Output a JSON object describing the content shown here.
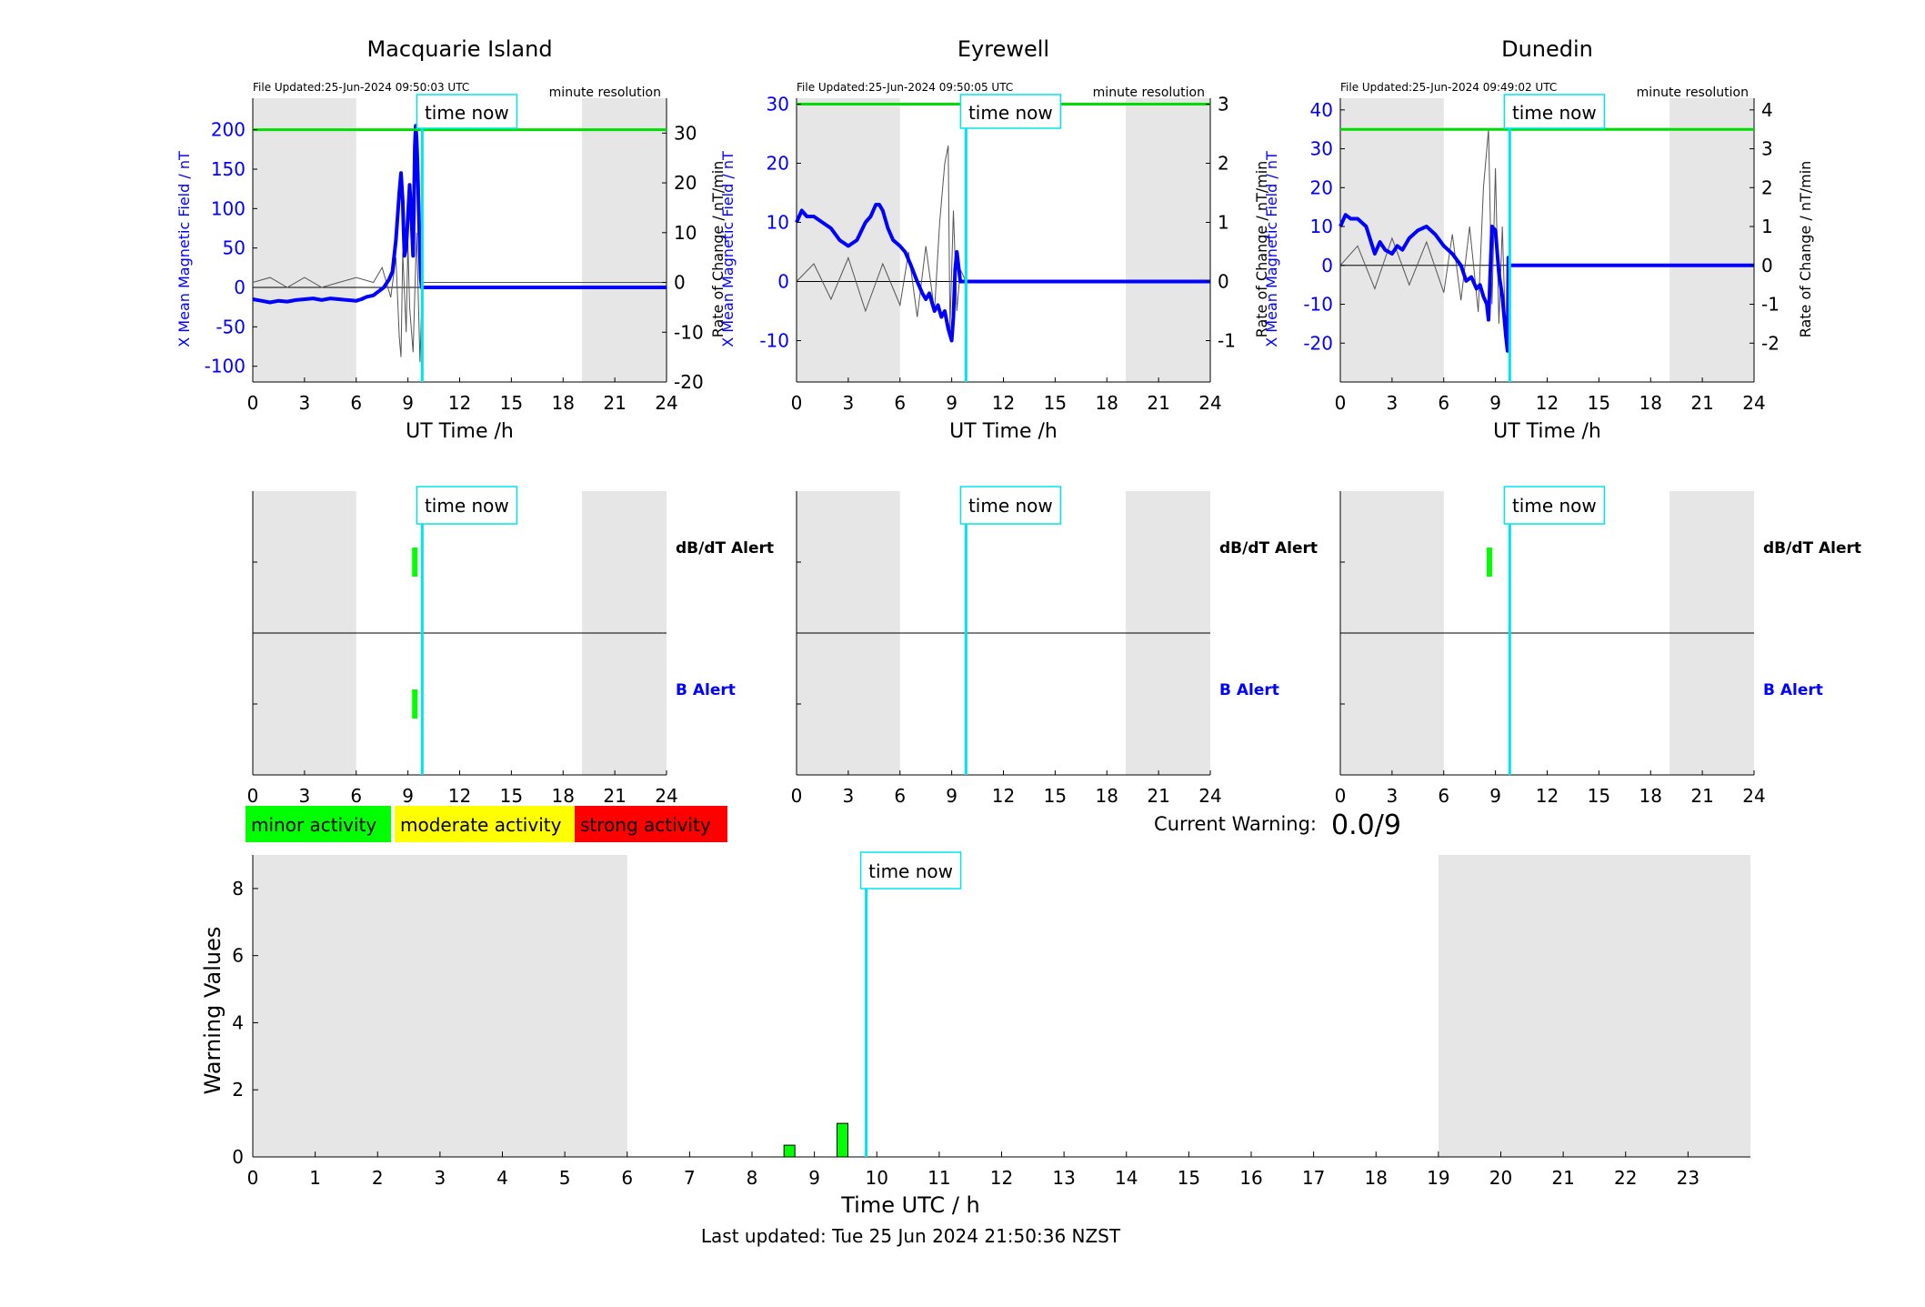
{
  "colors": {
    "axis": "#000000",
    "mean_field": "#0000ff",
    "rate_of_change": "#555555",
    "threshold": "#00dd00",
    "time_now": "#00e5ee",
    "night_shade": "#e6e6e6",
    "minor": "#00ff00",
    "moderate": "#ffff00",
    "strong": "#ff0000"
  },
  "time_now_label": "time now",
  "stations": [
    {
      "name": "Macquarie Island",
      "file_updated": "File Updated:25-Jun-2024 09:50:03 UTC",
      "resolution": "minute resolution",
      "ylabel_left": "X Mean Magnetic Field / nT",
      "ylabel_right": "Rate of Change / nT/min",
      "xlabel": "UT Time /h",
      "left_ticks": [
        "200",
        "150",
        "100",
        "50",
        "0",
        "-50",
        "-100"
      ],
      "right_ticks": [
        "30",
        "20",
        "10",
        "0",
        "-10",
        "-20"
      ],
      "x_ticks": [
        "0",
        "3",
        "6",
        "9",
        "12",
        "15",
        "18",
        "21",
        "24"
      ],
      "alert_labels": {
        "dbdt": "dB/dT Alert",
        "b": "B Alert"
      },
      "alerts": {
        "dbdt": [
          9.4
        ],
        "b": [
          9.4
        ]
      },
      "chart_data": {
        "type": "line",
        "xlim": [
          0,
          24
        ],
        "ylim_left": [
          -120,
          240
        ],
        "ylim_right": [
          -20,
          37
        ],
        "night_hours": [
          [
            0,
            6
          ],
          [
            19.1,
            24
          ]
        ],
        "threshold_left": 200,
        "time_now": 9.83,
        "mean_field": {
          "x": [
            0,
            0.5,
            1,
            1.5,
            2,
            2.5,
            3,
            3.5,
            4,
            4.5,
            5,
            5.5,
            6,
            6.3,
            6.6,
            7,
            7.3,
            7.6,
            7.9,
            8.1,
            8.3,
            8.5,
            8.6,
            8.7,
            8.75,
            8.8,
            8.9,
            9.0,
            9.1,
            9.2,
            9.3,
            9.35,
            9.4,
            9.45,
            9.5,
            9.55,
            9.6,
            9.65,
            9.7,
            9.75,
            9.8,
            9.83,
            12,
            24
          ],
          "y": [
            -15,
            -17,
            -19,
            -17,
            -18,
            -16,
            -15,
            -14,
            -16,
            -14,
            -15,
            -16,
            -17,
            -15,
            -12,
            -10,
            -5,
            0,
            10,
            20,
            60,
            120,
            145,
            110,
            70,
            40,
            50,
            90,
            130,
            90,
            40,
            110,
            180,
            205,
            190,
            160,
            120,
            80,
            40,
            10,
            0,
            0,
            0,
            0
          ]
        },
        "rate_of_change": {
          "x": [
            0,
            1,
            2,
            3,
            4,
            5,
            6,
            7,
            7.5,
            8,
            8.3,
            8.5,
            8.6,
            8.7,
            8.9,
            9.0,
            9.1,
            9.3,
            9.5,
            9.7,
            9.83,
            24
          ],
          "y": [
            0,
            1,
            -1,
            1,
            -1,
            0,
            1,
            0,
            3,
            -3,
            5,
            -11,
            -15,
            6,
            -10,
            8,
            -5,
            -14,
            10,
            -16,
            0,
            0
          ]
        }
      }
    },
    {
      "name": "Eyrewell",
      "file_updated": "File Updated:25-Jun-2024 09:50:05 UTC",
      "resolution": "minute resolution",
      "ylabel_left": "X Mean Magnetic Field / nT",
      "ylabel_right": "Rate of Change / nT/min",
      "xlabel": "UT Time /h",
      "left_ticks": [
        "30",
        "20",
        "10",
        "0",
        "-10"
      ],
      "right_ticks": [
        "3",
        "2",
        "1",
        "0",
        "-1"
      ],
      "x_ticks": [
        "0",
        "3",
        "6",
        "9",
        "12",
        "15",
        "18",
        "21",
        "24"
      ],
      "alert_labels": {
        "dbdt": "dB/dT Alert",
        "b": "B Alert"
      },
      "alerts": {
        "dbdt": [],
        "b": []
      },
      "chart_data": {
        "type": "line",
        "xlim": [
          0,
          24
        ],
        "ylim_left": [
          -17,
          31
        ],
        "ylim_right": [
          -1.7,
          3.1
        ],
        "night_hours": [
          [
            0,
            6
          ],
          [
            19.1,
            24
          ]
        ],
        "threshold_left": 30,
        "time_now": 9.83,
        "mean_field": {
          "x": [
            0,
            0.3,
            0.6,
            1,
            1.5,
            2,
            2.5,
            3,
            3.5,
            4,
            4.3,
            4.6,
            4.8,
            5,
            5.3,
            5.6,
            6,
            6.3,
            6.6,
            7,
            7.3,
            7.5,
            7.7,
            7.9,
            8.0,
            8.2,
            8.4,
            8.6,
            8.8,
            8.9,
            9.0,
            9.1,
            9.2,
            9.3,
            9.5,
            9.83,
            12,
            24
          ],
          "y": [
            10,
            12,
            11,
            11,
            10,
            9,
            7,
            6,
            7,
            10,
            11,
            13,
            13,
            12,
            9,
            7,
            6,
            5,
            3,
            0,
            -2,
            -3,
            -2,
            -4,
            -5,
            -4,
            -6,
            -5,
            -8,
            -9,
            -10,
            -6,
            2,
            5,
            0,
            0,
            0,
            0
          ]
        },
        "rate_of_change": {
          "x": [
            0,
            1,
            2,
            3,
            4,
            5,
            6,
            6.5,
            7,
            7.5,
            8,
            8.3,
            8.6,
            8.8,
            8.9,
            9.1,
            9.3,
            9.5,
            9.83,
            24
          ],
          "y": [
            0,
            0.3,
            -0.3,
            0.4,
            -0.5,
            0.3,
            -0.4,
            0.5,
            -0.6,
            0.6,
            -0.5,
            1.0,
            2.0,
            2.3,
            -0.8,
            1.2,
            -0.5,
            0.2,
            0,
            0
          ]
        }
      }
    },
    {
      "name": "Dunedin",
      "file_updated": "File Updated:25-Jun-2024 09:49:02 UTC",
      "resolution": "minute resolution",
      "ylabel_left": "X Mean Magnetic Field / nT",
      "ylabel_right": "Rate of Change / nT/min",
      "xlabel": "UT Time /h",
      "left_ticks": [
        "40",
        "30",
        "20",
        "10",
        "0",
        "-10",
        "-20"
      ],
      "right_ticks": [
        "4",
        "3",
        "2",
        "1",
        "0",
        "-1",
        "-2"
      ],
      "x_ticks": [
        "0",
        "3",
        "6",
        "9",
        "12",
        "15",
        "18",
        "21",
        "24"
      ],
      "alert_labels": {
        "dbdt": "dB/dT Alert",
        "b": "B Alert"
      },
      "alerts": {
        "dbdt": [
          8.65
        ],
        "b": []
      },
      "chart_data": {
        "type": "line",
        "xlim": [
          0,
          24
        ],
        "ylim_left": [
          -30,
          43
        ],
        "ylim_right": [
          -3,
          4.3
        ],
        "night_hours": [
          [
            0,
            6
          ],
          [
            19.1,
            24
          ]
        ],
        "threshold_left": 35,
        "time_now": 9.83,
        "mean_field": {
          "x": [
            0,
            0.3,
            0.6,
            1,
            1.5,
            2,
            2.3,
            2.6,
            3,
            3.3,
            3.6,
            4,
            4.5,
            5,
            5.5,
            6,
            6.5,
            7,
            7.3,
            7.6,
            7.9,
            8.1,
            8.3,
            8.5,
            8.6,
            8.8,
            9.0,
            9.2,
            9.4,
            9.6,
            9.7,
            9.75,
            9.8,
            9.83,
            12,
            24
          ],
          "y": [
            10,
            13,
            12,
            12,
            10,
            3,
            6,
            4,
            3,
            5,
            4,
            7,
            9,
            10,
            8,
            5,
            3,
            0,
            -4,
            -3,
            -6,
            -5,
            -8,
            -10,
            -14,
            10,
            9,
            -2,
            -8,
            -18,
            -22,
            2,
            0,
            0,
            0,
            0
          ]
        },
        "rate_of_change": {
          "x": [
            0,
            1,
            2,
            3,
            4,
            5,
            6,
            6.5,
            7,
            7.5,
            8,
            8.3,
            8.6,
            8.8,
            9.0,
            9.2,
            9.4,
            9.6,
            9.83,
            24
          ],
          "y": [
            0,
            0.5,
            -0.6,
            0.7,
            -0.5,
            0.6,
            -0.7,
            0.8,
            -0.9,
            1.0,
            -1.2,
            2.0,
            3.5,
            -1.0,
            2.5,
            -1.5,
            1.0,
            -2.0,
            0,
            0
          ]
        }
      }
    }
  ],
  "legend": {
    "minor": "minor activity",
    "moderate": "moderate activity",
    "strong": "strong activity"
  },
  "current_warning": {
    "label": "Current Warning:",
    "value": "0.0/9"
  },
  "warning_chart": {
    "ylabel": "Warning Values",
    "xlabel": "Time UTC / h",
    "y_ticks": [
      "0",
      "2",
      "4",
      "6",
      "8"
    ],
    "x_ticks": [
      "0",
      "1",
      "2",
      "3",
      "4",
      "5",
      "6",
      "7",
      "8",
      "9",
      "10",
      "11",
      "12",
      "13",
      "14",
      "15",
      "16",
      "17",
      "18",
      "19",
      "20",
      "21",
      "22",
      "23"
    ],
    "last_updated": "Last updated: Tue 25 Jun 2024 21:50:36 NZST"
  },
  "chart_data": {
    "type": "bar",
    "x_label": "Time UTC / h",
    "y_label": "Warning Values",
    "xlim": [
      0,
      24
    ],
    "ylim": [
      0,
      9
    ],
    "night_hours": [
      [
        0,
        6
      ],
      [
        19,
        24
      ]
    ],
    "time_now": 9.83,
    "bars": [
      {
        "x": 8.6,
        "value": 0.35,
        "level": "minor"
      },
      {
        "x": 9.45,
        "value": 1.0,
        "level": "minor"
      }
    ]
  }
}
